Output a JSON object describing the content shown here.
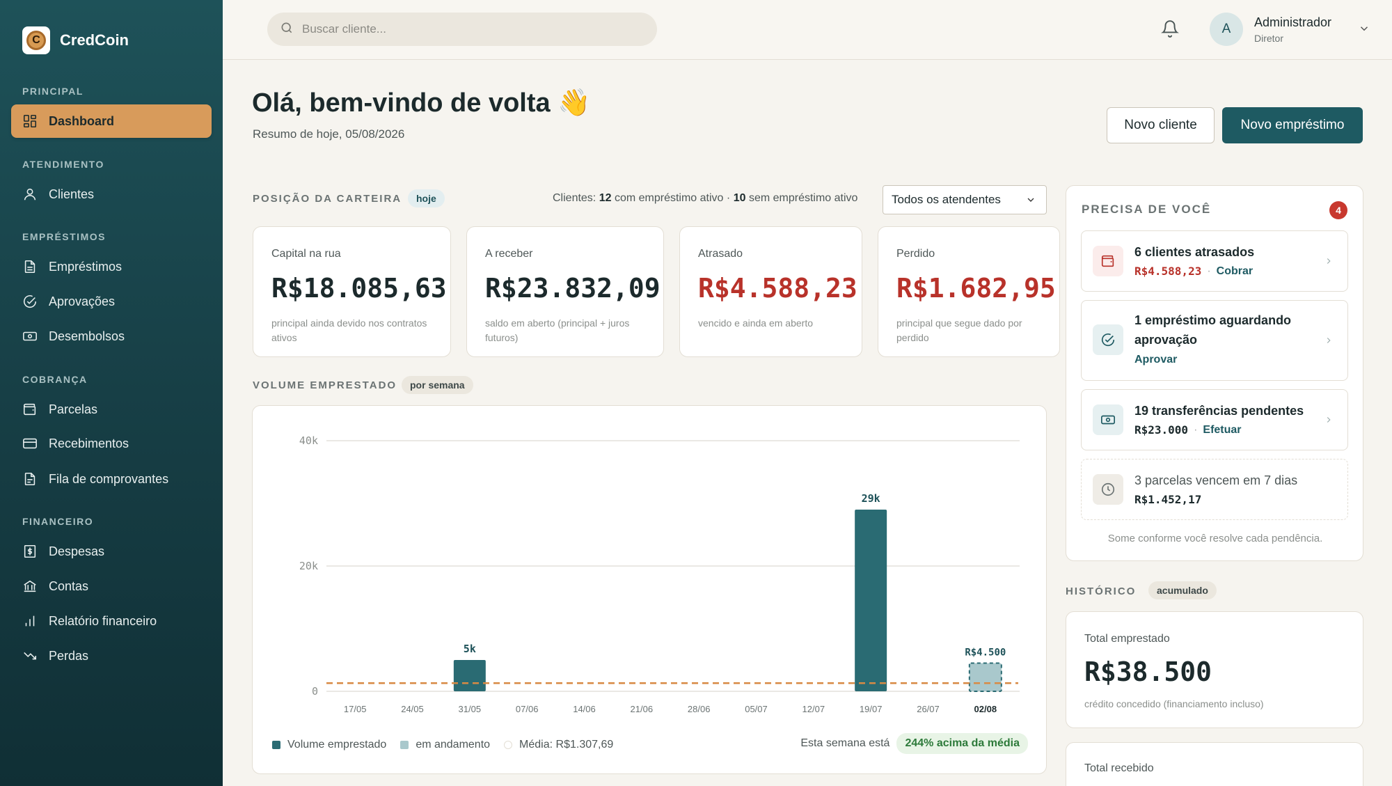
{
  "brand": {
    "name": "CredCoin",
    "logo_letter": "C"
  },
  "sidebar": {
    "sections": [
      {
        "title": "PRINCIPAL",
        "items": [
          {
            "label": "Dashboard",
            "icon": "dashboard-icon",
            "active": true
          }
        ]
      },
      {
        "title": "ATENDIMENTO",
        "items": [
          {
            "label": "Clientes",
            "icon": "user-icon"
          }
        ]
      },
      {
        "title": "EMPRÉSTIMOS",
        "items": [
          {
            "label": "Empréstimos",
            "icon": "document-icon"
          },
          {
            "label": "Aprovações",
            "icon": "check-circle-icon"
          },
          {
            "label": "Desembolsos",
            "icon": "banknote-icon"
          }
        ]
      },
      {
        "title": "COBRANÇA",
        "items": [
          {
            "label": "Parcelas",
            "icon": "wallet-icon"
          },
          {
            "label": "Recebimentos",
            "icon": "card-icon"
          },
          {
            "label": "Fila de comprovantes",
            "icon": "receipt-icon"
          }
        ]
      },
      {
        "title": "FINANCEIRO",
        "items": [
          {
            "label": "Despesas",
            "icon": "dollar-doc-icon"
          },
          {
            "label": "Contas",
            "icon": "bank-icon"
          },
          {
            "label": "Relatório financeiro",
            "icon": "bar-chart-icon"
          },
          {
            "label": "Perdas",
            "icon": "trend-down-icon"
          }
        ]
      }
    ]
  },
  "topbar": {
    "search_placeholder": "Buscar cliente...",
    "user": {
      "initial": "A",
      "name": "Administrador",
      "role": "Diretor"
    }
  },
  "header": {
    "title": "Olá, bem-vindo de volta 👋",
    "subtitle": "Resumo de hoje, 05/08/2026",
    "btn_new_client": "Novo cliente",
    "btn_new_loan": "Novo empréstimo"
  },
  "portfolio": {
    "title": "POSIÇÃO DA CARTEIRA",
    "badge": "hoje",
    "clients_prefix": "Clientes:",
    "clients_active": "12",
    "clients_active_text": "com empréstimo ativo",
    "sep": "·",
    "clients_inactive": "10",
    "clients_inactive_text": "sem empréstimo ativo",
    "filter": "Todos os atendentes",
    "kpis": [
      {
        "label": "Capital na rua",
        "value": "R$18.085,63",
        "desc": "principal ainda devido nos contratos ativos",
        "color": "#1c2a2c"
      },
      {
        "label": "A receber",
        "value": "R$23.832,09",
        "desc": "saldo em aberto (principal + juros futuros)",
        "color": "#1c2a2c"
      },
      {
        "label": "Atrasado",
        "value": "R$4.588,23",
        "desc": "vencido e ainda em aberto",
        "color": "#b8322a"
      },
      {
        "label": "Perdido",
        "value": "R$1.682,95",
        "desc": "principal que segue dado por perdido",
        "color": "#b8322a"
      }
    ]
  },
  "volume": {
    "title": "VOLUME EMPRESTADO",
    "badge": "por semana",
    "legend": {
      "lent": "Volume emprestado",
      "in_progress": "em andamento",
      "average": "Média: R$1.307,69"
    },
    "this_week_label": "Esta semana está",
    "this_week_badge": "244% acima da média"
  },
  "chart_data": {
    "type": "bar",
    "categories": [
      "17/05",
      "24/05",
      "31/05",
      "07/06",
      "14/06",
      "21/06",
      "28/06",
      "05/07",
      "12/07",
      "19/07",
      "26/07",
      "02/08"
    ],
    "series": [
      {
        "name": "Volume emprestado",
        "values": [
          0,
          0,
          5000,
          0,
          0,
          0,
          0,
          0,
          0,
          29000,
          0,
          4500
        ]
      }
    ],
    "bar_labels": [
      "",
      "",
      "5k",
      "",
      "",
      "",
      "",
      "",
      "",
      "29k",
      "",
      "R$4.500"
    ],
    "in_progress_index": 11,
    "average": 1307.69,
    "ylim": [
      0,
      40000
    ],
    "yticks": [
      0,
      20000,
      40000
    ],
    "ytick_labels": [
      "0",
      "20k",
      "40k"
    ],
    "colors": {
      "bar": "#2a6b73",
      "in_progress": "#a9c8cc",
      "average_line": "#d88a44",
      "grid": "#e3e1dc"
    }
  },
  "needs": {
    "title": "PRECISA DE VOCÊ",
    "count": "4",
    "tasks": [
      {
        "title": "6 clientes atrasados",
        "amount": "R$4.588,23",
        "action": "Cobrar",
        "icon": "wallet-icon"
      },
      {
        "title": "1 empréstimo aguardando aprovação",
        "action": "Aprovar",
        "icon": "check-circle-icon"
      },
      {
        "title": "19 transferências pendentes",
        "amount": "R$23.000",
        "action": "Efetuar",
        "icon": "banknote-icon"
      },
      {
        "title": "3 parcelas vencem em 7 dias",
        "amount": "R$1.452,17",
        "icon": "clock-icon"
      }
    ],
    "footer": "Some conforme você resolve cada pendência."
  },
  "history": {
    "title": "HISTÓRICO",
    "badge": "acumulado",
    "total_lent_label": "Total emprestado",
    "total_lent_value": "R$38.500",
    "total_lent_desc": "crédito concedido (financiamento incluso)",
    "total_received_label": "Total recebido"
  }
}
